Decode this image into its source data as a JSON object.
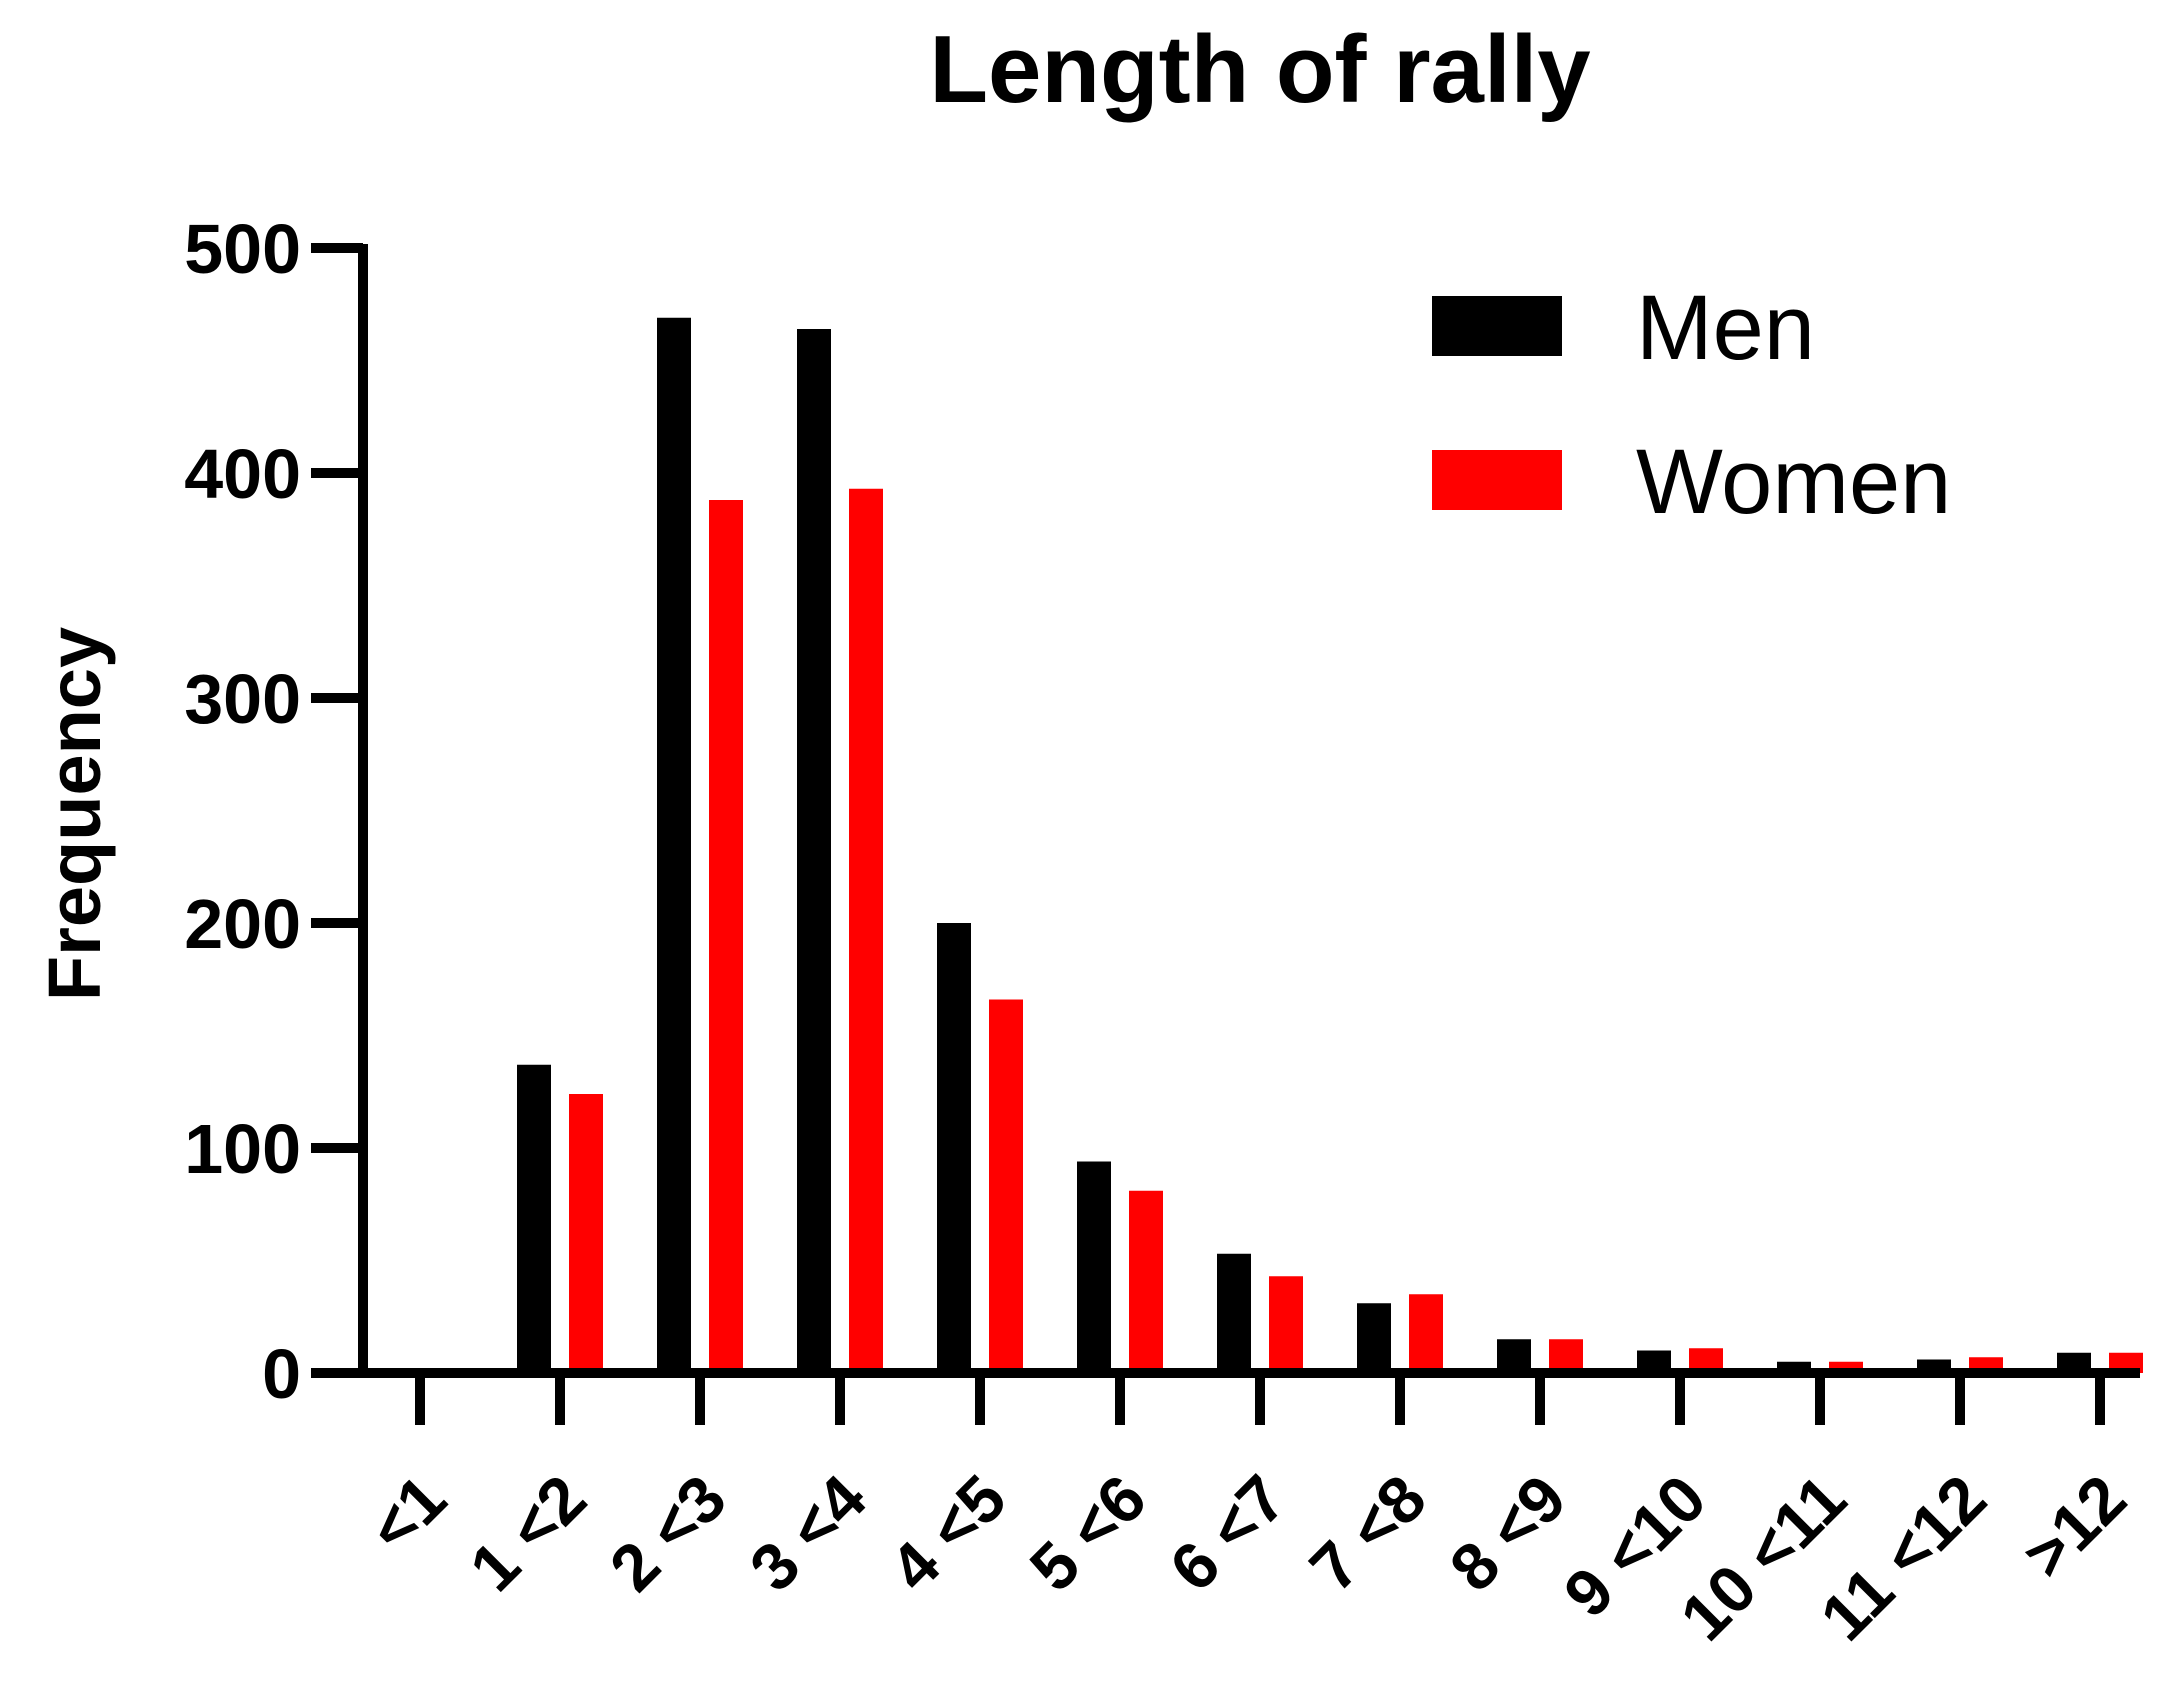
{
  "chart_data": {
    "type": "bar",
    "title": "Length of rally",
    "xlabel": "",
    "ylabel": "Frequency",
    "ylim": [
      0,
      500
    ],
    "yticks": [
      0,
      100,
      200,
      300,
      400,
      500
    ],
    "categories": [
      "<1",
      "1 <2",
      "2 <3",
      "3 <4",
      "4 <5",
      "5 <6",
      "6 <7",
      "7 <8",
      "8 <9",
      "9 <10",
      "10 <11",
      "11 <12",
      ">12"
    ],
    "series": [
      {
        "name": "Men",
        "color": "#000000",
        "values": [
          0,
          137,
          469,
          464,
          200,
          94,
          53,
          31,
          15,
          10,
          5,
          6,
          9
        ]
      },
      {
        "name": "Women",
        "color": "#ff0000",
        "values": [
          0,
          124,
          388,
          393,
          166,
          81,
          43,
          35,
          15,
          11,
          5,
          7,
          9
        ]
      }
    ],
    "legend_position": "top-right",
    "grid": false
  }
}
